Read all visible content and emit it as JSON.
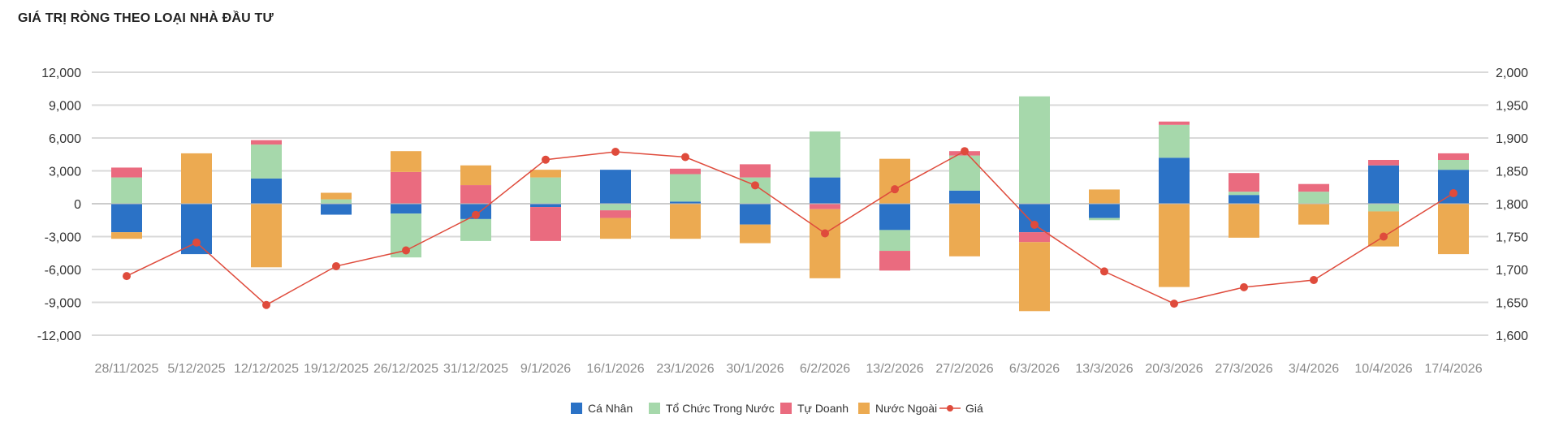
{
  "chart_data": {
    "type": "bar",
    "title": "GIÁ TRỊ RÒNG THEO LOẠI NHÀ ĐẦU TƯ",
    "stacked": true,
    "categories": [
      "28/11/2025",
      "5/12/2025",
      "12/12/2025",
      "19/12/2025",
      "26/12/2025",
      "31/12/2025",
      "9/1/2026",
      "16/1/2026",
      "23/1/2026",
      "30/1/2026",
      "6/2/2026",
      "13/2/2026",
      "27/2/2026",
      "6/3/2026",
      "13/3/2026",
      "20/3/2026",
      "27/3/2026",
      "3/4/2026",
      "10/4/2026",
      "17/4/2026"
    ],
    "y_left": {
      "lim": [
        -12000,
        12000
      ],
      "ticks": [
        12000,
        9000,
        6000,
        3000,
        0,
        -3000,
        -6000,
        -9000,
        -12000
      ],
      "tick_labels": [
        "12,000",
        "9,000",
        "6,000",
        "3,000",
        "0",
        "-3,000",
        "-6,000",
        "-9,000",
        "-12,000"
      ]
    },
    "y_right": {
      "lim": [
        1600,
        2000
      ],
      "ticks": [
        2000,
        1950,
        1900,
        1850,
        1800,
        1750,
        1700,
        1650,
        1600
      ],
      "tick_labels": [
        "2,000",
        "1,950",
        "1,900",
        "1,850",
        "1,800",
        "1,750",
        "1,700",
        "1,650",
        "1,600"
      ]
    },
    "series": [
      {
        "name": "Cá Nhân",
        "color": "#2b72c6",
        "axis": "left",
        "values": [
          -2600,
          -4600,
          2300,
          -1000,
          -900,
          -1400,
          -300,
          3100,
          200,
          -1900,
          2400,
          -2400,
          1200,
          -2600,
          -1300,
          4200,
          800,
          0,
          3500,
          3100
        ]
      },
      {
        "name": "Tổ Chức Trong Nước",
        "color": "#a6d8ab",
        "axis": "left",
        "values": [
          2400,
          0,
          3100,
          400,
          -4000,
          -2000,
          2400,
          -600,
          2500,
          2400,
          4200,
          -1900,
          3200,
          9800,
          -200,
          3000,
          300,
          1100,
          -700,
          900
        ]
      },
      {
        "name": "Tự Doanh",
        "color": "#ea6b7f",
        "axis": "left",
        "values": [
          900,
          0,
          400,
          0,
          2900,
          1700,
          -3100,
          -700,
          500,
          1200,
          -500,
          -1800,
          400,
          -900,
          0,
          300,
          1700,
          700,
          500,
          600
        ]
      },
      {
        "name": "Nước Ngoài",
        "color": "#ecaa51",
        "axis": "left",
        "values": [
          -600,
          4600,
          -5800,
          600,
          1900,
          1800,
          700,
          -1900,
          -3200,
          -1700,
          -6300,
          4100,
          -4800,
          -6300,
          1300,
          -7600,
          -3100,
          -1900,
          -3200,
          -4600
        ]
      },
      {
        "name": "Giá",
        "type": "line",
        "color": "#df4b3c",
        "axis": "right",
        "values": [
          1690,
          1741,
          1646,
          1705,
          1729,
          1783,
          1867,
          1879,
          1871,
          1828,
          1755,
          1822,
          1880,
          1768,
          1697,
          1648,
          1673,
          1684,
          1750,
          1816
        ]
      }
    ]
  }
}
